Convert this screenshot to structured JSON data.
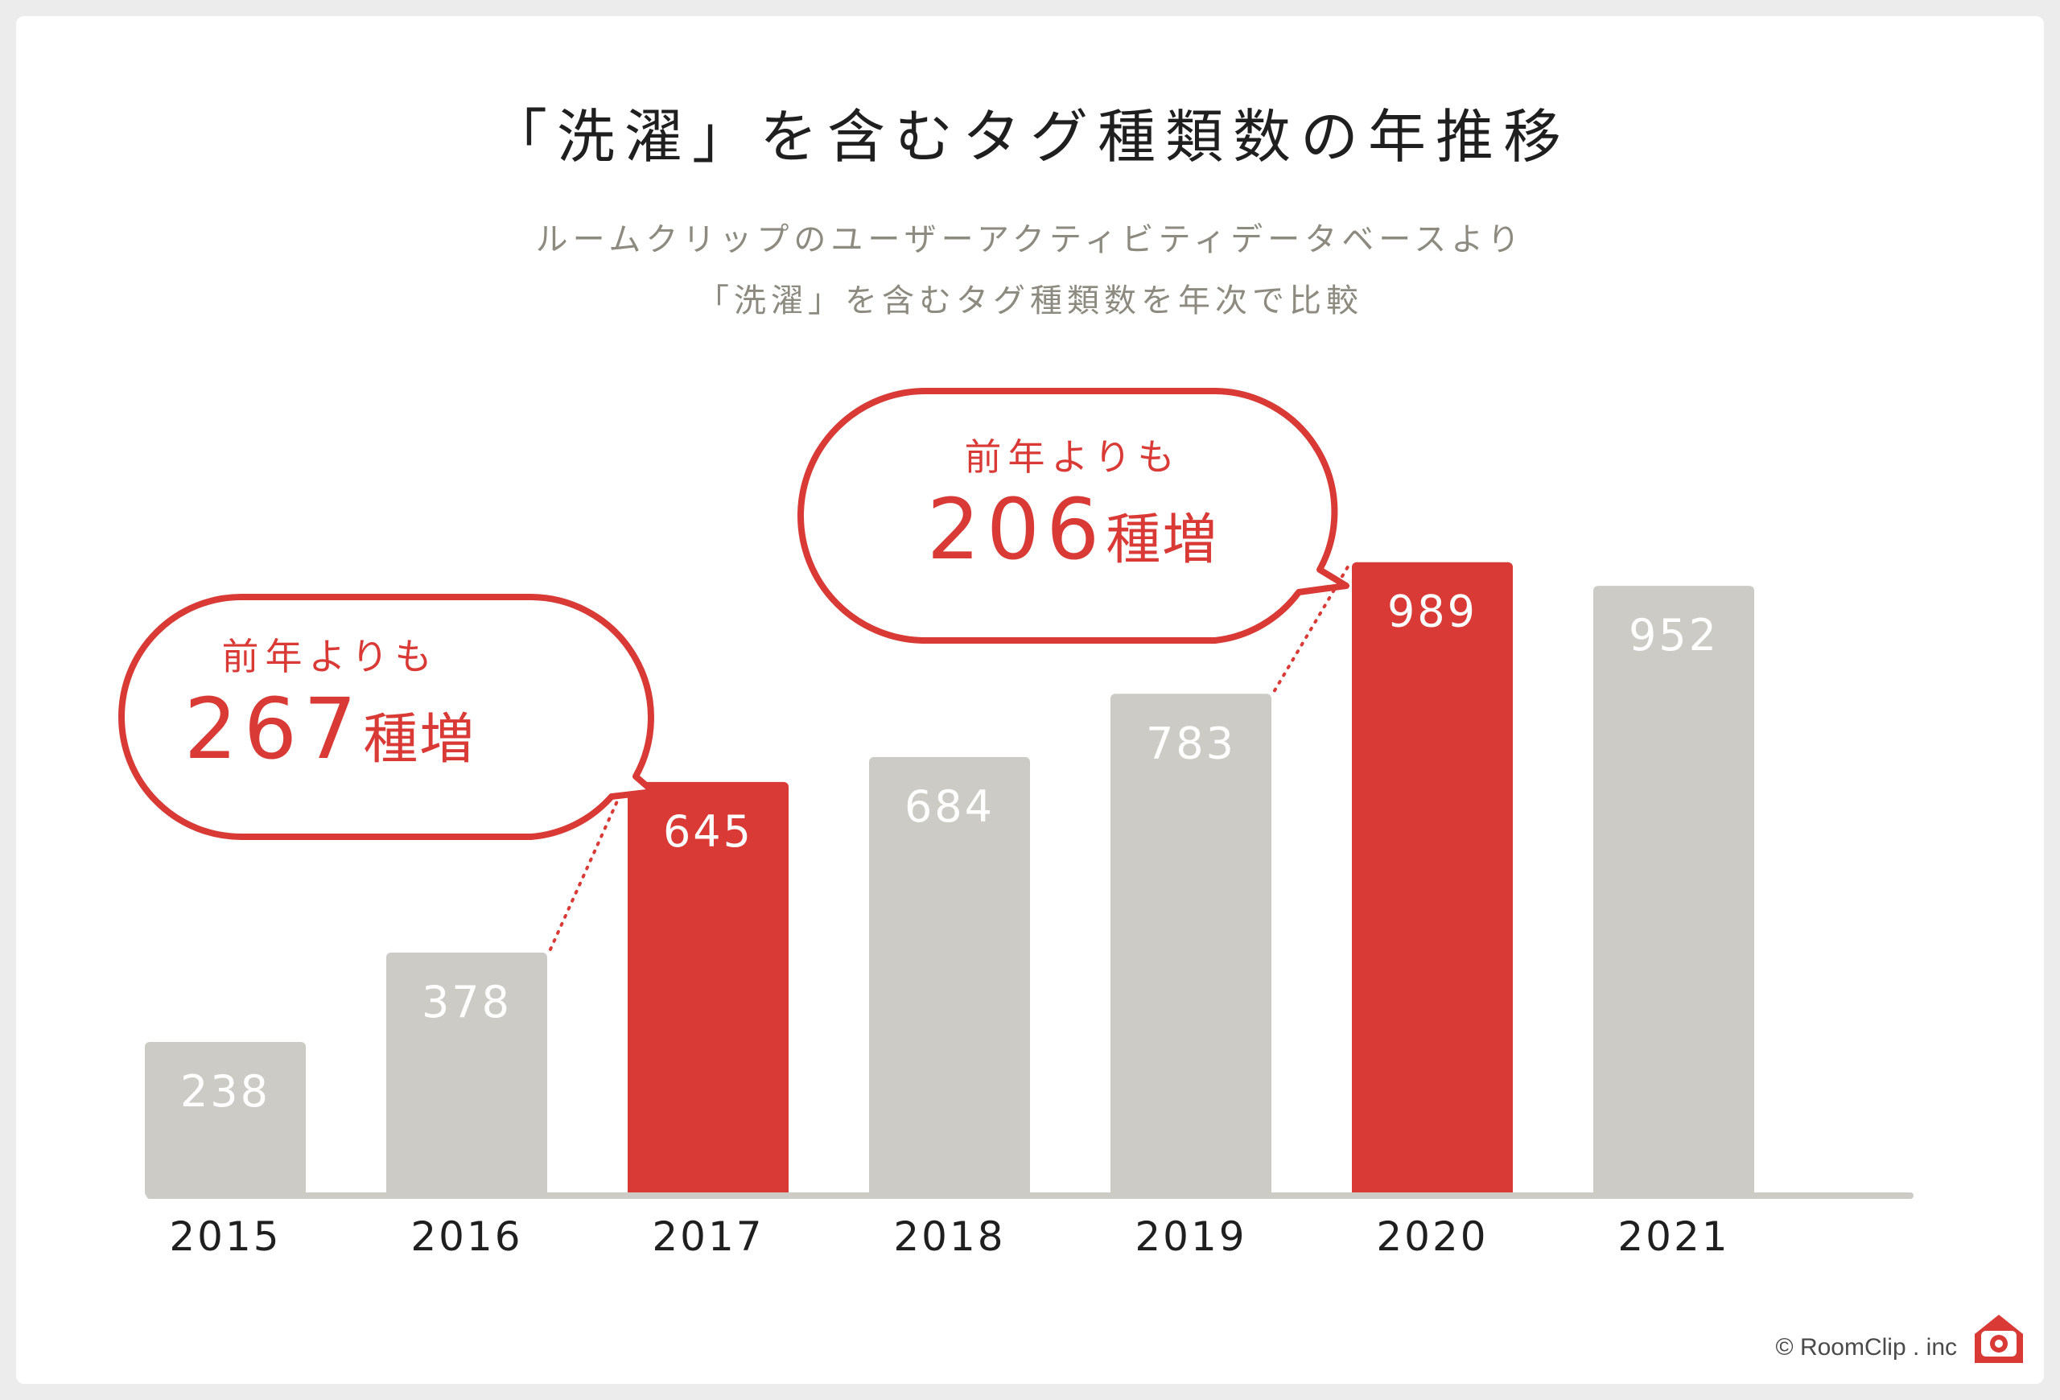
{
  "title": "「洗濯」を含むタグ種類数の年推移",
  "subtitle_line1": "ルームクリップのユーザーアクティビティデータベースより",
  "subtitle_line2": "「洗濯」を含むタグ種類数を年次で比較",
  "colors": {
    "highlight": "#d93a36",
    "bar_default": "#cdcbc5",
    "baseline": "#cdcbc5",
    "value_label": "#ffffff"
  },
  "chart_data": {
    "type": "bar",
    "title": "「洗濯」を含むタグ種類数の年推移",
    "xlabel": "",
    "ylabel": "",
    "ylim": [
      0,
      1000
    ],
    "grid": false,
    "categories": [
      "2015",
      "2016",
      "2017",
      "2018",
      "2019",
      "2020",
      "2021"
    ],
    "values": [
      238,
      378,
      645,
      684,
      783,
      989,
      952
    ],
    "highlighted": [
      "2017",
      "2020"
    ]
  },
  "callouts": [
    {
      "lead": "前年より",
      "suffix": "も",
      "number": "267",
      "unit": "種増",
      "from_year": "2016",
      "to_year": "2017"
    },
    {
      "lead": "前年より",
      "suffix": "も",
      "number": "206",
      "unit": "種増",
      "from_year": "2019",
      "to_year": "2020"
    }
  ],
  "credit": "© RoomClip . inc",
  "logo_icon": "house-camera-icon"
}
